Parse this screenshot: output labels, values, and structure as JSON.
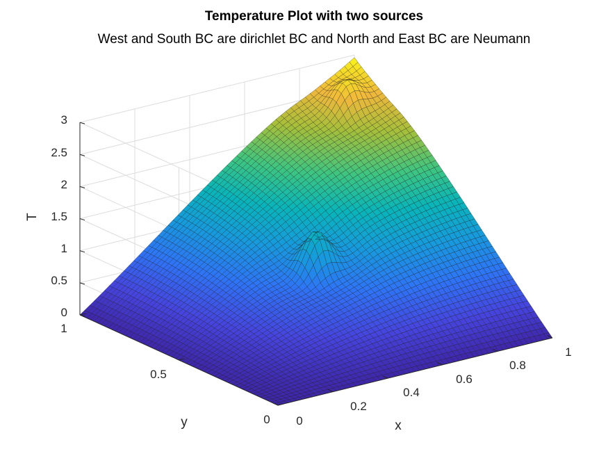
{
  "chart_data": {
    "type": "surface",
    "title": "Temperature Plot with two sources",
    "subtitle": "West and South BC are dirichlet BC and North and East BC are Neumann",
    "xlabel": "x",
    "ylabel": "y",
    "zlabel": "T",
    "xlim": [
      0,
      1
    ],
    "ylim": [
      0,
      1
    ],
    "zlim": [
      0,
      3
    ],
    "x_ticks": [
      "0",
      "0.2",
      "0.4",
      "0.6",
      "0.8",
      "1"
    ],
    "y_ticks": [
      "0",
      "0.5",
      "1"
    ],
    "z_ticks": [
      "0",
      "0.5",
      "1",
      "1.5",
      "2",
      "2.5",
      "3"
    ],
    "colormap": "parula",
    "grid": true,
    "sources": [
      {
        "x": 0.5,
        "y": 0.5,
        "peak_T": 1.22
      },
      {
        "x": 0.9,
        "y": 0.9,
        "peak_T": 2.96
      }
    ],
    "corner_values": [
      {
        "x": 0,
        "y": 0,
        "T": 0
      },
      {
        "x": 1,
        "y": 0,
        "T": 0
      },
      {
        "x": 0,
        "y": 1,
        "T": 0
      },
      {
        "x": 1,
        "y": 1,
        "T": 2.95
      }
    ]
  }
}
